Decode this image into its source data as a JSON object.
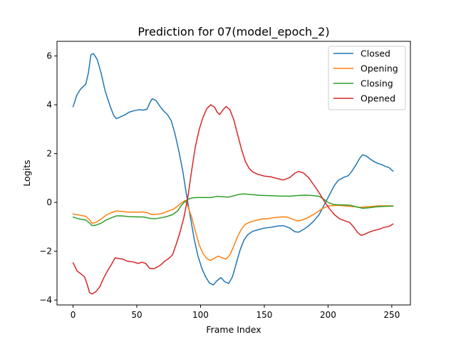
{
  "chart_data": {
    "type": "line",
    "title": "Prediction for 07(model_epoch_2)",
    "xlabel": "Frame Index",
    "ylabel": "Logits",
    "xlim": [
      -12.6,
      264.6
    ],
    "ylim": [
      -4.2,
      6.6
    ],
    "xticks": [
      0,
      50,
      100,
      150,
      200,
      250
    ],
    "yticks": [
      -4,
      -2,
      0,
      2,
      4,
      6
    ],
    "grid": false,
    "legend_position": "top-right",
    "series": [
      {
        "name": "Closed",
        "color": "#1f77b4",
        "points": [
          [
            0,
            3.92
          ],
          [
            3,
            4.4
          ],
          [
            6,
            4.65
          ],
          [
            10,
            4.85
          ],
          [
            12,
            5.3
          ],
          [
            14,
            6.05
          ],
          [
            16,
            6.1
          ],
          [
            19,
            5.85
          ],
          [
            22,
            5.3
          ],
          [
            25,
            4.6
          ],
          [
            29,
            3.95
          ],
          [
            32,
            3.55
          ],
          [
            34,
            3.43
          ],
          [
            37,
            3.5
          ],
          [
            41,
            3.6
          ],
          [
            44,
            3.7
          ],
          [
            48,
            3.76
          ],
          [
            52,
            3.8
          ],
          [
            55,
            3.78
          ],
          [
            58,
            3.82
          ],
          [
            60,
            4.05
          ],
          [
            62,
            4.25
          ],
          [
            65,
            4.18
          ],
          [
            68,
            3.95
          ],
          [
            71,
            3.75
          ],
          [
            74,
            3.6
          ],
          [
            77,
            3.35
          ],
          [
            80,
            2.8
          ],
          [
            83,
            2.1
          ],
          [
            86,
            1.3
          ],
          [
            89,
            0.3
          ],
          [
            92,
            -0.6
          ],
          [
            95,
            -1.5
          ],
          [
            98,
            -2.2
          ],
          [
            101,
            -2.7
          ],
          [
            104,
            -3.05
          ],
          [
            107,
            -3.3
          ],
          [
            110,
            -3.38
          ],
          [
            113,
            -3.2
          ],
          [
            116,
            -3.08
          ],
          [
            119,
            -3.25
          ],
          [
            122,
            -3.32
          ],
          [
            125,
            -3.05
          ],
          [
            128,
            -2.5
          ],
          [
            131,
            -1.95
          ],
          [
            134,
            -1.55
          ],
          [
            137,
            -1.32
          ],
          [
            141,
            -1.18
          ],
          [
            145,
            -1.12
          ],
          [
            150,
            -1.05
          ],
          [
            155,
            -1.02
          ],
          [
            160,
            -0.97
          ],
          [
            165,
            -0.95
          ],
          [
            170,
            -1.05
          ],
          [
            174,
            -1.2
          ],
          [
            177,
            -1.22
          ],
          [
            181,
            -1.1
          ],
          [
            185,
            -0.95
          ],
          [
            189,
            -0.75
          ],
          [
            193,
            -0.5
          ],
          [
            196,
            -0.2
          ],
          [
            199,
            0.1
          ],
          [
            202,
            0.4
          ],
          [
            205,
            0.7
          ],
          [
            208,
            0.9
          ],
          [
            212,
            1.02
          ],
          [
            216,
            1.1
          ],
          [
            219,
            1.3
          ],
          [
            222,
            1.55
          ],
          [
            225,
            1.82
          ],
          [
            227,
            1.95
          ],
          [
            230,
            1.9
          ],
          [
            233,
            1.78
          ],
          [
            236,
            1.68
          ],
          [
            239,
            1.6
          ],
          [
            242,
            1.55
          ],
          [
            245,
            1.48
          ],
          [
            248,
            1.42
          ],
          [
            251,
            1.28
          ]
        ]
      },
      {
        "name": "Opening",
        "color": "#ff7f0e",
        "points": [
          [
            0,
            -0.47
          ],
          [
            5,
            -0.52
          ],
          [
            10,
            -0.57
          ],
          [
            13,
            -0.72
          ],
          [
            15,
            -0.85
          ],
          [
            18,
            -0.82
          ],
          [
            22,
            -0.68
          ],
          [
            26,
            -0.52
          ],
          [
            30,
            -0.42
          ],
          [
            34,
            -0.35
          ],
          [
            38,
            -0.37
          ],
          [
            44,
            -0.4
          ],
          [
            50,
            -0.4
          ],
          [
            55,
            -0.39
          ],
          [
            58,
            -0.42
          ],
          [
            62,
            -0.5
          ],
          [
            67,
            -0.48
          ],
          [
            71,
            -0.43
          ],
          [
            75,
            -0.35
          ],
          [
            79,
            -0.27
          ],
          [
            82,
            -0.15
          ],
          [
            85,
            -0.02
          ],
          [
            88,
            0.08
          ],
          [
            90,
            -0.15
          ],
          [
            93,
            -0.6
          ],
          [
            96,
            -1.2
          ],
          [
            99,
            -1.75
          ],
          [
            102,
            -2.1
          ],
          [
            105,
            -2.3
          ],
          [
            108,
            -2.38
          ],
          [
            111,
            -2.28
          ],
          [
            114,
            -2.2
          ],
          [
            117,
            -2.27
          ],
          [
            120,
            -2.32
          ],
          [
            123,
            -2.15
          ],
          [
            126,
            -1.8
          ],
          [
            129,
            -1.4
          ],
          [
            132,
            -1.1
          ],
          [
            135,
            -0.9
          ],
          [
            139,
            -0.8
          ],
          [
            143,
            -0.74
          ],
          [
            148,
            -0.68
          ],
          [
            153,
            -0.66
          ],
          [
            158,
            -0.62
          ],
          [
            164,
            -0.59
          ],
          [
            168,
            -0.6
          ],
          [
            172,
            -0.68
          ],
          [
            176,
            -0.76
          ],
          [
            180,
            -0.72
          ],
          [
            185,
            -0.6
          ],
          [
            190,
            -0.45
          ],
          [
            195,
            -0.27
          ],
          [
            200,
            -0.15
          ],
          [
            205,
            -0.12
          ],
          [
            210,
            -0.13
          ],
          [
            215,
            -0.15
          ],
          [
            220,
            -0.17
          ],
          [
            225,
            -0.2
          ],
          [
            230,
            -0.18
          ],
          [
            235,
            -0.16
          ],
          [
            240,
            -0.14
          ],
          [
            245,
            -0.14
          ],
          [
            251,
            -0.14
          ]
        ]
      },
      {
        "name": "Closing",
        "color": "#2ca02c",
        "points": [
          [
            0,
            -0.6
          ],
          [
            5,
            -0.68
          ],
          [
            10,
            -0.72
          ],
          [
            13,
            -0.85
          ],
          [
            15,
            -0.95
          ],
          [
            18,
            -0.93
          ],
          [
            22,
            -0.85
          ],
          [
            26,
            -0.72
          ],
          [
            30,
            -0.63
          ],
          [
            34,
            -0.55
          ],
          [
            38,
            -0.55
          ],
          [
            44,
            -0.58
          ],
          [
            50,
            -0.59
          ],
          [
            56,
            -0.6
          ],
          [
            60,
            -0.65
          ],
          [
            64,
            -0.67
          ],
          [
            69,
            -0.63
          ],
          [
            74,
            -0.57
          ],
          [
            78,
            -0.5
          ],
          [
            82,
            -0.35
          ],
          [
            85,
            -0.12
          ],
          [
            88,
            0.05
          ],
          [
            91,
            0.15
          ],
          [
            94,
            0.19
          ],
          [
            98,
            0.2
          ],
          [
            103,
            0.2
          ],
          [
            108,
            0.2
          ],
          [
            113,
            0.25
          ],
          [
            118,
            0.23
          ],
          [
            122,
            0.22
          ],
          [
            126,
            0.27
          ],
          [
            130,
            0.33
          ],
          [
            134,
            0.35
          ],
          [
            140,
            0.32
          ],
          [
            146,
            0.29
          ],
          [
            152,
            0.28
          ],
          [
            158,
            0.27
          ],
          [
            164,
            0.26
          ],
          [
            170,
            0.26
          ],
          [
            176,
            0.28
          ],
          [
            182,
            0.3
          ],
          [
            188,
            0.28
          ],
          [
            193,
            0.25
          ],
          [
            197,
            0.12
          ],
          [
            200,
            0.0
          ],
          [
            204,
            -0.08
          ],
          [
            208,
            -0.1
          ],
          [
            213,
            -0.1
          ],
          [
            218,
            -0.12
          ],
          [
            222,
            -0.18
          ],
          [
            227,
            -0.24
          ],
          [
            232,
            -0.22
          ],
          [
            238,
            -0.18
          ],
          [
            244,
            -0.16
          ],
          [
            251,
            -0.15
          ]
        ]
      },
      {
        "name": "Opened",
        "color": "#d62728",
        "points": [
          [
            0,
            -2.47
          ],
          [
            3,
            -2.8
          ],
          [
            6,
            -2.92
          ],
          [
            9,
            -3.05
          ],
          [
            11,
            -3.35
          ],
          [
            13,
            -3.7
          ],
          [
            15,
            -3.75
          ],
          [
            18,
            -3.65
          ],
          [
            21,
            -3.45
          ],
          [
            24,
            -3.1
          ],
          [
            27,
            -2.8
          ],
          [
            30,
            -2.55
          ],
          [
            33,
            -2.27
          ],
          [
            36,
            -2.3
          ],
          [
            39,
            -2.32
          ],
          [
            42,
            -2.4
          ],
          [
            45,
            -2.42
          ],
          [
            48,
            -2.45
          ],
          [
            51,
            -2.5
          ],
          [
            54,
            -2.45
          ],
          [
            57,
            -2.5
          ],
          [
            60,
            -2.7
          ],
          [
            63,
            -2.72
          ],
          [
            66,
            -2.65
          ],
          [
            69,
            -2.55
          ],
          [
            72,
            -2.4
          ],
          [
            75,
            -2.3
          ],
          [
            78,
            -2.15
          ],
          [
            81,
            -1.7
          ],
          [
            84,
            -1.2
          ],
          [
            87,
            -0.6
          ],
          [
            90,
            0.2
          ],
          [
            93,
            1.3
          ],
          [
            96,
            2.3
          ],
          [
            99,
            3.0
          ],
          [
            102,
            3.5
          ],
          [
            105,
            3.85
          ],
          [
            108,
            4.0
          ],
          [
            111,
            3.9
          ],
          [
            113,
            3.7
          ],
          [
            115,
            3.6
          ],
          [
            118,
            3.82
          ],
          [
            120,
            3.93
          ],
          [
            123,
            3.8
          ],
          [
            126,
            3.4
          ],
          [
            129,
            2.8
          ],
          [
            132,
            2.2
          ],
          [
            135,
            1.7
          ],
          [
            138,
            1.4
          ],
          [
            141,
            1.25
          ],
          [
            145,
            1.15
          ],
          [
            150,
            1.08
          ],
          [
            155,
            1.05
          ],
          [
            160,
            0.98
          ],
          [
            165,
            0.92
          ],
          [
            170,
            1.02
          ],
          [
            174,
            1.2
          ],
          [
            177,
            1.27
          ],
          [
            181,
            1.2
          ],
          [
            185,
            1.0
          ],
          [
            189,
            0.7
          ],
          [
            193,
            0.4
          ],
          [
            197,
            0.05
          ],
          [
            201,
            -0.25
          ],
          [
            205,
            -0.5
          ],
          [
            209,
            -0.67
          ],
          [
            213,
            -0.75
          ],
          [
            217,
            -0.82
          ],
          [
            220,
            -1.0
          ],
          [
            223,
            -1.22
          ],
          [
            226,
            -1.35
          ],
          [
            229,
            -1.3
          ],
          [
            232,
            -1.22
          ],
          [
            236,
            -1.15
          ],
          [
            240,
            -1.1
          ],
          [
            244,
            -1.02
          ],
          [
            248,
            -0.98
          ],
          [
            251,
            -0.88
          ]
        ]
      }
    ]
  }
}
